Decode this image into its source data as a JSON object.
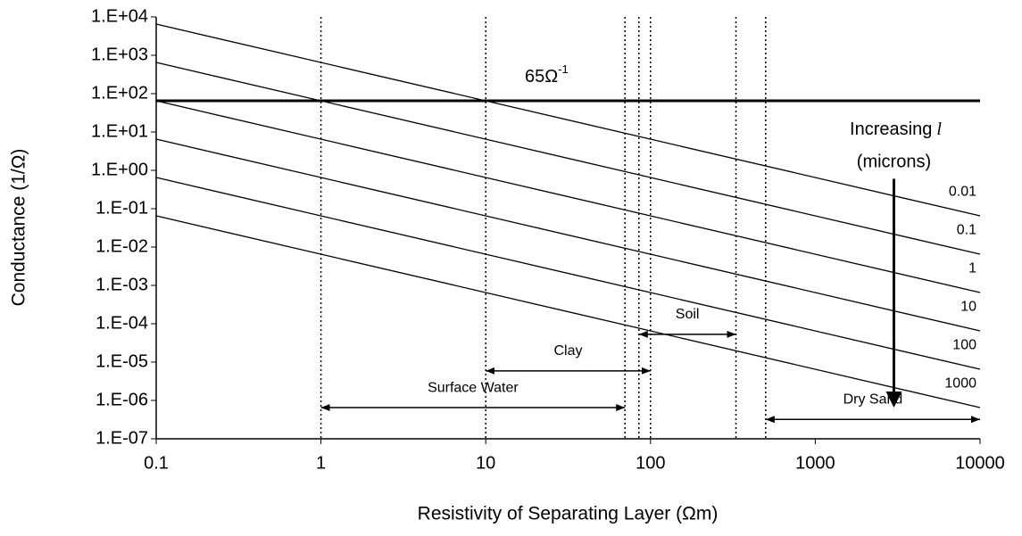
{
  "chart_data": {
    "type": "line",
    "x_label": "Resistivity of Separating Layer (Ωm)",
    "y_label": "Conductance (1/Ω)",
    "xlog": true,
    "ylog": true,
    "xlim": [
      0.1,
      10000
    ],
    "ylim": [
      1e-07,
      10000
    ],
    "xticks": [
      0.1,
      1,
      10,
      100,
      1000,
      10000
    ],
    "yticks": [
      {
        "value": 10000,
        "label": "1.E+04"
      },
      {
        "value": 1000,
        "label": "1.E+03"
      },
      {
        "value": 100,
        "label": "1.E+02"
      },
      {
        "value": 10,
        "label": "1.E+01"
      },
      {
        "value": 1,
        "label": "1.E+00"
      },
      {
        "value": 0.1,
        "label": "1.E-01"
      },
      {
        "value": 0.01,
        "label": "1.E-02"
      },
      {
        "value": 0.001,
        "label": "1.E-03"
      },
      {
        "value": 0.0001,
        "label": "1.E-04"
      },
      {
        "value": 1e-05,
        "label": "1.E-05"
      },
      {
        "value": 1e-06,
        "label": "1.E-06"
      },
      {
        "value": 1e-07,
        "label": "1.E-07"
      }
    ],
    "x": [
      0.1,
      10000
    ],
    "series": [
      {
        "name": "0.01",
        "color": "#000000",
        "values": [
          6500,
          0.065
        ]
      },
      {
        "name": "0.1",
        "color": "#000000",
        "values": [
          650,
          0.0065
        ]
      },
      {
        "name": "1",
        "color": "#000000",
        "values": [
          65,
          0.00065
        ]
      },
      {
        "name": "10",
        "color": "#000000",
        "values": [
          6.5,
          6.5e-05
        ]
      },
      {
        "name": "100",
        "color": "#000000",
        "values": [
          0.65,
          6.5e-06
        ]
      },
      {
        "name": "1000",
        "color": "#000000",
        "values": [
          0.065,
          6.5e-07
        ]
      }
    ],
    "hline": {
      "value": 65,
      "label": "65Ω",
      "label_sup": "-1",
      "color": "#000000"
    },
    "vlines": [
      1,
      10,
      70,
      85,
      100,
      330,
      500
    ],
    "ranges": [
      {
        "label": "Surface Water",
        "x": [
          1,
          70
        ],
        "y": 6.5e-07
      },
      {
        "label": "Clay",
        "x": [
          10,
          100
        ],
        "y": 5.9e-06
      },
      {
        "label": "Soil",
        "x": [
          85,
          330
        ],
        "y": 5.3e-05
      },
      {
        "label": "Dry Sand",
        "x": [
          500,
          10000
        ],
        "y": 3.2e-07
      }
    ],
    "trend": {
      "label": "Increasing",
      "symbol": "l",
      "unit": "(microns)",
      "x": 3000,
      "y": [
        0.6,
        5e-07
      ]
    }
  }
}
